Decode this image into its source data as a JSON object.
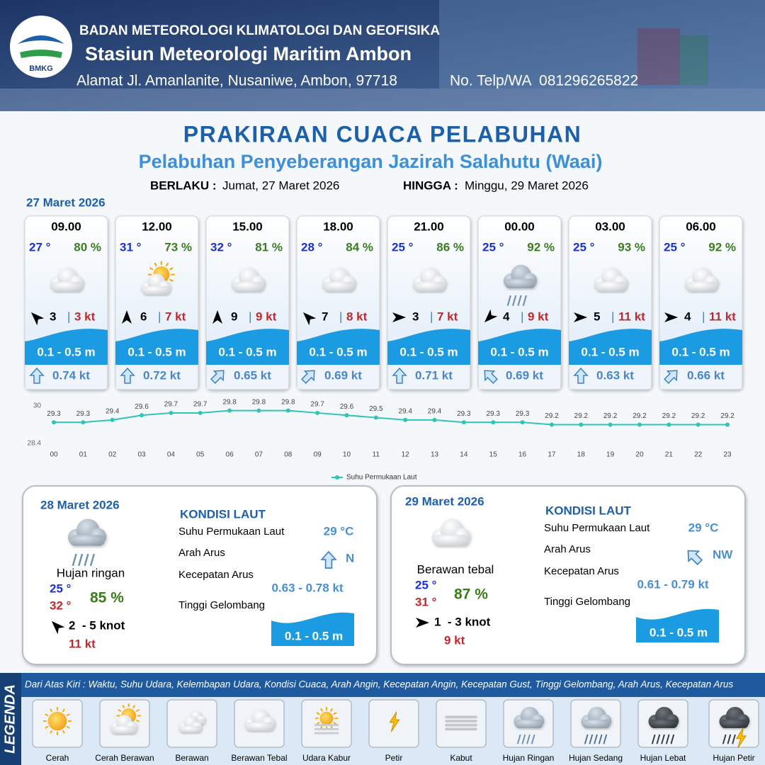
{
  "header": {
    "logo": "BMKG",
    "org": "BADAN METEOROLOGI KLIMATOLOGI DAN GEOFISIKA",
    "station": "Stasiun Meteorologi Maritim Ambon",
    "address": "Alamat Jl. Amanlanite, Nusaniwe, Ambon, 97718",
    "phone": "No. Telp/WA  081296265822"
  },
  "title": "PRAKIRAAN CUACA PELABUHAN",
  "subtitle": "Pelabuhan Penyeberangan Jazirah Salahutu (Waai)",
  "validity": {
    "from_label": "BERLAKU :",
    "from": "Jumat, 27 Maret 2026",
    "to_label": "HINGGA :",
    "to": "Minggu, 29 Maret 2026"
  },
  "today": {
    "date": "27 Maret 2026",
    "cards": [
      {
        "time": "09.00",
        "temp": "27 °",
        "humidity": "80 %",
        "wind": "3",
        "separator": "|",
        "gust": "3 kt",
        "wave": "0.1 - 0.5 m",
        "current": "0.74 kt"
      },
      {
        "time": "12.00",
        "temp": "31 °",
        "humidity": "73 %",
        "wind": "6",
        "separator": "|",
        "gust": "7 kt",
        "wave": "0.1 - 0.5 m",
        "current": "0.72 kt"
      },
      {
        "time": "15.00",
        "temp": "32 °",
        "humidity": "81 %",
        "wind": "9",
        "separator": "|",
        "gust": "9 kt",
        "wave": "0.1 - 0.5 m",
        "current": "0.65 kt"
      },
      {
        "time": "18.00",
        "temp": "28 °",
        "humidity": "84 %",
        "wind": "7",
        "separator": "|",
        "gust": "8 kt",
        "wave": "0.1 - 0.5 m",
        "current": "0.69 kt"
      },
      {
        "time": "21.00",
        "temp": "25 °",
        "humidity": "86 %",
        "wind": "3",
        "separator": "|",
        "gust": "7 kt",
        "wave": "0.1 - 0.5 m",
        "current": "0.71 kt"
      },
      {
        "time": "00.00",
        "temp": "25 °",
        "humidity": "92 %",
        "wind": "4",
        "separator": "|",
        "gust": "9 kt",
        "wave": "0.1 - 0.5 m",
        "current": "0.69 kt"
      },
      {
        "time": "03.00",
        "temp": "25 °",
        "humidity": "93 %",
        "wind": "5",
        "separator": "|",
        "gust": "11 kt",
        "wave": "0.1 - 0.5 m",
        "current": "0.63 kt"
      },
      {
        "time": "06.00",
        "temp": "25 °",
        "humidity": "92 %",
        "wind": "4",
        "separator": "|",
        "gust": "11 kt",
        "wave": "0.1 - 0.5 m",
        "current": "0.66 kt"
      }
    ]
  },
  "chart_data": {
    "type": "line",
    "x": [
      "00",
      "01",
      "02",
      "03",
      "04",
      "05",
      "06",
      "07",
      "08",
      "09",
      "10",
      "11",
      "12",
      "13",
      "14",
      "15",
      "16",
      "17",
      "18",
      "19",
      "20",
      "21",
      "22",
      "23"
    ],
    "series": [
      {
        "name": "Suhu Permukaan Laut",
        "color": "#2ec4b6",
        "values": [
          29.3,
          29.3,
          29.4,
          29.6,
          29.7,
          29.7,
          29.8,
          29.8,
          29.8,
          29.7,
          29.6,
          29.5,
          29.4,
          29.4,
          29.3,
          29.3,
          29.3,
          29.2,
          29.2,
          29.2,
          29.2,
          29.2,
          29.2,
          29.2
        ]
      }
    ],
    "ylim": [
      28.4,
      30
    ],
    "yticks": [
      28.4,
      30
    ],
    "grid": false,
    "legend": "bottom"
  },
  "days": [
    {
      "date": "28 Maret 2026",
      "condition": "Hujan ringan",
      "temp_min": "25 °",
      "temp_max": "32 °",
      "humidity": "85 %",
      "wind": "2  - 5 knot",
      "gust": "11 kt",
      "sea": {
        "title": "KONDISI LAUT",
        "sst_label": "Suhu Permukaan Laut",
        "sst": "29 °C",
        "dir_label": "Arah Arus",
        "dir": "N",
        "speed_label": "Kecepatan Arus",
        "speed": "0.63 - 0.78 kt",
        "wave_label": "Tinggi Gelombang",
        "wave": "0.1 - 0.5 m"
      }
    },
    {
      "date": "29 Maret 2026",
      "condition": "Berawan tebal",
      "temp_min": "25 °",
      "temp_max": "31 °",
      "humidity": "87 %",
      "wind": "1  - 3 knot",
      "gust": "9 kt",
      "sea": {
        "title": "KONDISI LAUT",
        "sst_label": "Suhu Permukaan Laut",
        "sst": "29 °C",
        "dir_label": "Arah Arus",
        "dir": "NW",
        "speed_label": "Kecepatan Arus",
        "speed": "0.61 - 0.79 kt",
        "wave_label": "Tinggi Gelombang",
        "wave": "0.1 - 0.5 m"
      }
    }
  ],
  "legend": {
    "title": "LEGENDA",
    "description": "Dari Atas Kiri : Waktu, Suhu Udara, Kelembapan Udara, Kondisi Cuaca, Arah Angin, Kecepatan Angin, Kecepatan Gust, Tinggi Gelombang, Arah Arus, Kecepatan Arus",
    "items": [
      "Cerah",
      "Cerah Berawan",
      "Berawan",
      "Berawan Tebal",
      "Udara Kabur",
      "Petir",
      "Kabut",
      "Hujan Ringan",
      "Hujan Sedang",
      "Hujan Lebat",
      "Hujan Petir"
    ]
  }
}
